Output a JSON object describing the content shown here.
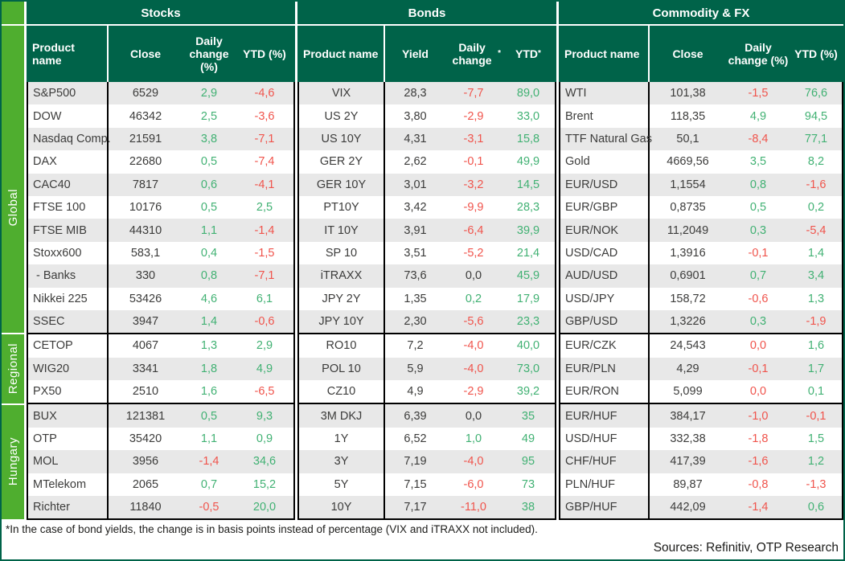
{
  "groups": [
    {
      "label": "Global",
      "rows": 11
    },
    {
      "label": "Regional",
      "rows": 3
    },
    {
      "label": "Hungary",
      "rows": 5
    }
  ],
  "sections": [
    {
      "title": "Stocks",
      "columns": [
        "Product name",
        "Close",
        "Daily change (%)",
        "YTD (%)"
      ],
      "rows": [
        {
          "name": "S&P500",
          "close": "6529",
          "change": "2,9",
          "change_c": "pos",
          "ytd": "-4,6",
          "ytd_c": "neg"
        },
        {
          "name": "DOW",
          "close": "46342",
          "change": "2,5",
          "change_c": "pos",
          "ytd": "-3,6",
          "ytd_c": "neg"
        },
        {
          "name": "Nasdaq Comp.",
          "close": "21591",
          "change": "3,8",
          "change_c": "pos",
          "ytd": "-7,1",
          "ytd_c": "neg"
        },
        {
          "name": "DAX",
          "close": "22680",
          "change": "0,5",
          "change_c": "pos",
          "ytd": "-7,4",
          "ytd_c": "neg"
        },
        {
          "name": "CAC40",
          "close": "7817",
          "change": "0,6",
          "change_c": "pos",
          "ytd": "-4,1",
          "ytd_c": "neg"
        },
        {
          "name": "FTSE 100",
          "close": "10176",
          "change": "0,5",
          "change_c": "pos",
          "ytd": "2,5",
          "ytd_c": "pos"
        },
        {
          "name": "FTSE MIB",
          "close": "44310",
          "change": "1,1",
          "change_c": "pos",
          "ytd": "-1,4",
          "ytd_c": "neg"
        },
        {
          "name": "Stoxx600",
          "close": "583,1",
          "change": "0,4",
          "change_c": "pos",
          "ytd": "-1,5",
          "ytd_c": "neg"
        },
        {
          "name": " - Banks",
          "close": "330",
          "change": "0,8",
          "change_c": "pos",
          "ytd": "-7,1",
          "ytd_c": "neg"
        },
        {
          "name": "Nikkei 225",
          "close": "53426",
          "change": "4,6",
          "change_c": "pos",
          "ytd": "6,1",
          "ytd_c": "pos"
        },
        {
          "name": "SSEC",
          "close": "3947",
          "change": "1,4",
          "change_c": "pos",
          "ytd": "-0,6",
          "ytd_c": "neg"
        },
        {
          "name": "CETOP",
          "close": "4067",
          "change": "1,3",
          "change_c": "pos",
          "ytd": "2,9",
          "ytd_c": "pos"
        },
        {
          "name": "WIG20",
          "close": "3341",
          "change": "1,8",
          "change_c": "pos",
          "ytd": "4,9",
          "ytd_c": "pos"
        },
        {
          "name": "PX50",
          "close": "2510",
          "change": "1,6",
          "change_c": "pos",
          "ytd": "-6,5",
          "ytd_c": "neg"
        },
        {
          "name": "BUX",
          "close": "121381",
          "change": "0,5",
          "change_c": "pos",
          "ytd": "9,3",
          "ytd_c": "pos"
        },
        {
          "name": "OTP",
          "close": "35420",
          "change": "1,1",
          "change_c": "pos",
          "ytd": "0,9",
          "ytd_c": "pos"
        },
        {
          "name": "MOL",
          "close": "3956",
          "change": "-1,4",
          "change_c": "neg",
          "ytd": "34,6",
          "ytd_c": "pos"
        },
        {
          "name": "MTelekom",
          "close": "2065",
          "change": "0,7",
          "change_c": "pos",
          "ytd": "15,2",
          "ytd_c": "pos"
        },
        {
          "name": "Richter",
          "close": "11840",
          "change": "-0,5",
          "change_c": "neg",
          "ytd": "20,0",
          "ytd_c": "pos"
        }
      ]
    },
    {
      "title": "Bonds",
      "columns": [
        "Product name",
        "Yield",
        "Daily change*",
        "YTD*"
      ],
      "rows": [
        {
          "name": "VIX",
          "close": "28,3",
          "change": "-7,7",
          "change_c": "neg",
          "ytd": "89,0",
          "ytd_c": "pos"
        },
        {
          "name": "US 2Y",
          "close": "3,80",
          "change": "-2,9",
          "change_c": "neg",
          "ytd": "33,0",
          "ytd_c": "pos"
        },
        {
          "name": "US 10Y",
          "close": "4,31",
          "change": "-3,1",
          "change_c": "neg",
          "ytd": "15,8",
          "ytd_c": "pos"
        },
        {
          "name": "GER 2Y",
          "close": "2,62",
          "change": "-0,1",
          "change_c": "neg",
          "ytd": "49,9",
          "ytd_c": "pos"
        },
        {
          "name": "GER 10Y",
          "close": "3,01",
          "change": "-3,2",
          "change_c": "neg",
          "ytd": "14,5",
          "ytd_c": "pos"
        },
        {
          "name": "PT10Y",
          "close": "3,42",
          "change": "-9,9",
          "change_c": "neg",
          "ytd": "28,3",
          "ytd_c": "pos"
        },
        {
          "name": "IT 10Y",
          "close": "3,91",
          "change": "-6,4",
          "change_c": "neg",
          "ytd": "39,9",
          "ytd_c": "pos"
        },
        {
          "name": "SP 10",
          "close": "3,51",
          "change": "-5,2",
          "change_c": "neg",
          "ytd": "21,4",
          "ytd_c": "pos"
        },
        {
          "name": "iTRAXX",
          "close": "73,6",
          "change": "0,0",
          "change_c": "neu",
          "ytd": "45,9",
          "ytd_c": "pos"
        },
        {
          "name": "JPY 2Y",
          "close": "1,35",
          "change": "0,2",
          "change_c": "pos",
          "ytd": "17,9",
          "ytd_c": "pos"
        },
        {
          "name": "JPY 10Y",
          "close": "2,30",
          "change": "-5,6",
          "change_c": "neg",
          "ytd": "23,3",
          "ytd_c": "pos"
        },
        {
          "name": "RO10",
          "close": "7,2",
          "change": "-4,0",
          "change_c": "neg",
          "ytd": "40,0",
          "ytd_c": "pos"
        },
        {
          "name": "POL 10",
          "close": "5,9",
          "change": "-4,0",
          "change_c": "neg",
          "ytd": "73,0",
          "ytd_c": "pos"
        },
        {
          "name": "CZ10",
          "close": "4,9",
          "change": "-2,9",
          "change_c": "neg",
          "ytd": "39,2",
          "ytd_c": "pos"
        },
        {
          "name": "3M DKJ",
          "close": "6,39",
          "change": "0,0",
          "change_c": "neu",
          "ytd": "35",
          "ytd_c": "pos"
        },
        {
          "name": "1Y",
          "close": "6,52",
          "change": "1,0",
          "change_c": "pos",
          "ytd": "49",
          "ytd_c": "pos"
        },
        {
          "name": "3Y",
          "close": "7,19",
          "change": "-4,0",
          "change_c": "neg",
          "ytd": "95",
          "ytd_c": "pos"
        },
        {
          "name": "5Y",
          "close": "7,15",
          "change": "-6,0",
          "change_c": "neg",
          "ytd": "73",
          "ytd_c": "pos"
        },
        {
          "name": "10Y",
          "close": "7,17",
          "change": "-11,0",
          "change_c": "neg",
          "ytd": "38",
          "ytd_c": "pos"
        }
      ]
    },
    {
      "title": "Commodity & FX",
      "columns": [
        "Product name",
        "Close",
        "Daily change (%)",
        "YTD (%)"
      ],
      "rows": [
        {
          "name": "WTI",
          "close": "101,38",
          "change": "-1,5",
          "change_c": "neg",
          "ytd": "76,6",
          "ytd_c": "pos"
        },
        {
          "name": "Brent",
          "close": "118,35",
          "change": "4,9",
          "change_c": "pos",
          "ytd": "94,5",
          "ytd_c": "pos"
        },
        {
          "name": "TTF Natural Gas",
          "close": "50,1",
          "change": "-8,4",
          "change_c": "neg",
          "ytd": "77,1",
          "ytd_c": "pos"
        },
        {
          "name": "Gold",
          "close": "4669,56",
          "change": "3,5",
          "change_c": "pos",
          "ytd": "8,2",
          "ytd_c": "pos"
        },
        {
          "name": "EUR/USD",
          "close": "1,1554",
          "change": "0,8",
          "change_c": "pos",
          "ytd": "-1,6",
          "ytd_c": "neg"
        },
        {
          "name": "EUR/GBP",
          "close": "0,8735",
          "change": "0,5",
          "change_c": "pos",
          "ytd": "0,2",
          "ytd_c": "pos"
        },
        {
          "name": "EUR/NOK",
          "close": "11,2049",
          "change": "0,3",
          "change_c": "pos",
          "ytd": "-5,4",
          "ytd_c": "neg"
        },
        {
          "name": "USD/CAD",
          "close": "1,3916",
          "change": "-0,1",
          "change_c": "neg",
          "ytd": "1,4",
          "ytd_c": "pos"
        },
        {
          "name": "AUD/USD",
          "close": "0,6901",
          "change": "0,7",
          "change_c": "pos",
          "ytd": "3,4",
          "ytd_c": "pos"
        },
        {
          "name": "USD/JPY",
          "close": "158,72",
          "change": "-0,6",
          "change_c": "neg",
          "ytd": "1,3",
          "ytd_c": "pos"
        },
        {
          "name": "GBP/USD",
          "close": "1,3226",
          "change": "0,3",
          "change_c": "pos",
          "ytd": "-1,9",
          "ytd_c": "neg"
        },
        {
          "name": "EUR/CZK",
          "close": "24,543",
          "change": "0,0",
          "change_c": "neg",
          "ytd": "1,6",
          "ytd_c": "pos"
        },
        {
          "name": "EUR/PLN",
          "close": "4,29",
          "change": "-0,1",
          "change_c": "neg",
          "ytd": "1,7",
          "ytd_c": "pos"
        },
        {
          "name": "EUR/RON",
          "close": "5,099",
          "change": "0,0",
          "change_c": "neg",
          "ytd": "0,1",
          "ytd_c": "pos"
        },
        {
          "name": "EUR/HUF",
          "close": "384,17",
          "change": "-1,0",
          "change_c": "neg",
          "ytd": "-0,1",
          "ytd_c": "neg"
        },
        {
          "name": "USD/HUF",
          "close": "332,38",
          "change": "-1,8",
          "change_c": "neg",
          "ytd": "1,5",
          "ytd_c": "pos"
        },
        {
          "name": "CHF/HUF",
          "close": "417,39",
          "change": "-1,6",
          "change_c": "neg",
          "ytd": "1,2",
          "ytd_c": "pos"
        },
        {
          "name": "PLN/HUF",
          "close": "89,87",
          "change": "-0,8",
          "change_c": "neg",
          "ytd": "-1,3",
          "ytd_c": "neg"
        },
        {
          "name": "GBP/HUF",
          "close": "442,09",
          "change": "-1,4",
          "change_c": "neg",
          "ytd": "0,6",
          "ytd_c": "pos"
        }
      ]
    }
  ],
  "footer": {
    "footnote": "*In the case of bond yields, the change is in basis points instead of percentage (VIX and iTRAXX not included).",
    "sources": "Sources: Refinitiv, OTP Research"
  },
  "colors": {
    "dark_green": "#006349",
    "bright_green": "#4fae2f",
    "positive": "#41b173",
    "negative": "#f0544c",
    "neutral_text": "#3c3c3b",
    "row_stripe": "#e8e8e8",
    "border": "#000000"
  }
}
